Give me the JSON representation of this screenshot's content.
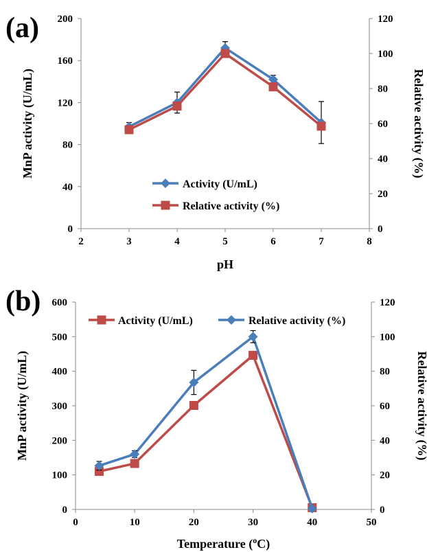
{
  "chart_data": [
    {
      "type": "line",
      "panel_label": "(a)",
      "xlabel": "pH",
      "ylabel": "MnP activity (U/mL)",
      "y2label": "Relative activity (%)",
      "xlim": [
        2,
        8
      ],
      "ylim": [
        0,
        200
      ],
      "y2lim": [
        0,
        120
      ],
      "xticks": [
        "2",
        "3",
        "4",
        "5",
        "6",
        "7",
        "8"
      ],
      "yticks": [
        "0",
        "40",
        "80",
        "120",
        "160",
        "200"
      ],
      "y2ticks": [
        "0",
        "20",
        "40",
        "60",
        "80",
        "100",
        "120"
      ],
      "legend_position": "lower-center",
      "grid": false,
      "series": [
        {
          "name": "Activity (U/mL)",
          "axis": "left",
          "color": "#4a7ebb",
          "marker": "diamond",
          "x": [
            3,
            4,
            5,
            6,
            7
          ],
          "values": [
            97,
            120,
            172,
            142,
            101
          ],
          "errors": [
            4,
            10,
            6,
            4,
            20
          ]
        },
        {
          "name": "Relative activity (%)",
          "axis": "right",
          "color": "#be4b48",
          "marker": "square",
          "x": [
            3,
            4,
            5,
            6,
            7
          ],
          "values": [
            56.5,
            70,
            100,
            81,
            58.5
          ],
          "errors": [
            0,
            0,
            0,
            0,
            0
          ]
        }
      ]
    },
    {
      "type": "line",
      "panel_label": "(b)",
      "xlabel": "Temperature (",
      "xlabel_sup": "o",
      "xlabel_end": "C)",
      "ylabel": "MnP activity (U/mL)",
      "y2label": "Relative activity (%)",
      "xlim": [
        0,
        50
      ],
      "ylim": [
        0,
        600
      ],
      "y2lim": [
        0,
        120
      ],
      "xticks": [
        "0",
        "10",
        "20",
        "30",
        "40",
        "50"
      ],
      "yticks": [
        "0",
        "100",
        "200",
        "300",
        "400",
        "500",
        "600"
      ],
      "y2ticks": [
        "0",
        "20",
        "40",
        "60",
        "80",
        "100",
        "120"
      ],
      "legend_position": "top",
      "grid": false,
      "series": [
        {
          "name": "Activity (U/mL)",
          "axis": "left",
          "color": "#be4b48",
          "marker": "square",
          "x": [
            4,
            10,
            20,
            30,
            40
          ],
          "values": [
            110,
            133,
            301,
            446,
            5
          ],
          "errors": [
            0,
            0,
            0,
            0,
            0
          ]
        },
        {
          "name": "Relative activity (%)",
          "axis": "right",
          "color": "#4a7ebb",
          "marker": "diamond",
          "x": [
            4,
            10,
            20,
            30,
            40
          ],
          "values": [
            25.3,
            32,
            73.5,
            100,
            0.5
          ],
          "errors": [
            2.5,
            2,
            7,
            3.5,
            0
          ]
        }
      ]
    }
  ]
}
